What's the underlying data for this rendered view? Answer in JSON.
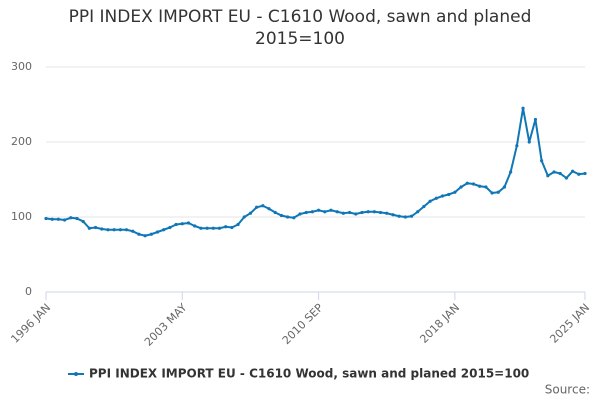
{
  "chart_data": {
    "type": "line",
    "title": "PPI INDEX IMPORT EU - C1610 Wood, sawn and planed 2015=100",
    "source": "Source:",
    "categories": [
      "1996 JAN",
      null,
      null,
      null,
      null,
      null,
      null,
      null,
      null,
      null,
      null,
      null,
      null,
      null,
      null,
      null,
      null,
      null,
      null,
      null,
      null,
      null,
      "2003 MAY",
      null,
      null,
      null,
      null,
      null,
      null,
      null,
      null,
      null,
      null,
      null,
      null,
      null,
      null,
      null,
      null,
      null,
      null,
      null,
      null,
      null,
      "2010 SEP",
      null,
      null,
      null,
      null,
      null,
      null,
      null,
      null,
      null,
      null,
      null,
      null,
      null,
      null,
      null,
      null,
      null,
      null,
      null,
      null,
      null,
      "2018 JAN",
      null,
      null,
      null,
      null,
      null,
      null,
      null,
      null,
      null,
      null,
      null,
      null,
      null,
      null,
      null,
      null,
      null,
      null,
      null,
      null,
      "2025 JAN"
    ],
    "series": [
      {
        "name": "PPI INDEX IMPORT EU - C1610 Wood, sawn and planed 2015=100",
        "color": "#1077b6",
        "values": [
          98,
          97,
          97,
          96,
          99,
          98,
          94,
          85,
          86,
          84,
          83,
          83,
          83,
          83,
          81,
          77,
          75,
          77,
          80,
          83,
          86,
          90,
          91,
          92,
          88,
          85,
          85,
          85,
          85,
          87,
          86,
          90,
          100,
          105,
          113,
          115,
          111,
          106,
          102,
          100,
          99,
          104,
          106,
          107,
          109,
          107,
          109,
          107,
          105,
          106,
          104,
          106,
          107,
          107,
          106,
          105,
          103,
          101,
          100,
          101,
          107,
          114,
          121,
          125,
          128,
          130,
          133,
          140,
          145,
          144,
          141,
          140,
          132,
          133,
          140,
          160,
          195,
          245,
          200,
          230,
          175,
          155,
          160,
          158,
          152,
          161,
          157,
          158
        ]
      }
    ],
    "ylim": [
      0,
      300
    ],
    "yticks": [
      0,
      100,
      200,
      300
    ],
    "grid": true,
    "legend": "bottom"
  }
}
